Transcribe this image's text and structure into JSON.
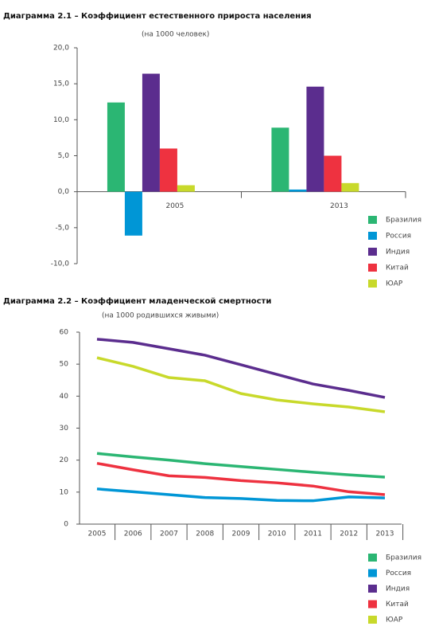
{
  "chart_data": [
    {
      "type": "bar",
      "title": "Диаграмма 2.1 – Коэффициент  естественного прироста населения",
      "subtitle": "(на 1000 человек)",
      "categories": [
        "2005",
        "2013"
      ],
      "series": [
        {
          "name": "Бразилия",
          "color": "#2bb673",
          "values": [
            12.4,
            8.9
          ]
        },
        {
          "name": "Россия",
          "color": "#0096d6",
          "values": [
            -6.1,
            0.3
          ]
        },
        {
          "name": "Индия",
          "color": "#5b2d8e",
          "values": [
            16.4,
            14.6
          ]
        },
        {
          "name": "Китай",
          "color": "#ee3240",
          "values": [
            6.0,
            5.0
          ]
        },
        {
          "name": "ЮАР",
          "color": "#c8d92b",
          "values": [
            0.9,
            1.2
          ]
        }
      ],
      "ylim": [
        -10,
        20
      ],
      "yticks": [
        {
          "value": 20,
          "label": "20,0"
        },
        {
          "value": 15,
          "label": "15,0"
        },
        {
          "value": 10,
          "label": "10,0"
        },
        {
          "value": 5,
          "label": "5,0"
        },
        {
          "value": 0,
          "label": "0,0"
        },
        {
          "value": -5,
          "label": "-5,0"
        },
        {
          "value": -10,
          "label": "-10,0"
        }
      ]
    },
    {
      "type": "line",
      "title": "Диаграмма 2.2 – Коэффициент младенческой смертности",
      "subtitle": "(на 1000 родившихся живыми)",
      "categories": [
        "2005",
        "2006",
        "2007",
        "2008",
        "2009",
        "2010",
        "2011",
        "2012",
        "2013"
      ],
      "series": [
        {
          "name": "Бразилия",
          "color": "#2bb673",
          "values": [
            22.1,
            21.0,
            20.0,
            18.9,
            18.0,
            17.1,
            16.2,
            15.4,
            14.7
          ]
        },
        {
          "name": "Россия",
          "color": "#0096d6",
          "values": [
            11.0,
            10.1,
            9.2,
            8.3,
            8.0,
            7.4,
            7.3,
            8.5,
            8.2
          ]
        },
        {
          "name": "Индия",
          "color": "#5b2d8e",
          "values": [
            57.8,
            56.8,
            54.8,
            52.8,
            49.8,
            46.8,
            43.8,
            41.8,
            39.6
          ]
        },
        {
          "name": "Китай",
          "color": "#ee3240",
          "values": [
            19.0,
            17.0,
            15.1,
            14.6,
            13.6,
            12.9,
            11.9,
            10.1,
            9.2
          ]
        },
        {
          "name": "ЮАР",
          "color": "#c8d92b",
          "values": [
            52.0,
            49.3,
            45.8,
            44.8,
            40.8,
            38.8,
            37.6,
            36.6,
            35.1
          ]
        }
      ],
      "ylim": [
        0,
        60
      ],
      "yticks": [
        0,
        10,
        20,
        30,
        40,
        50,
        60
      ]
    }
  ]
}
